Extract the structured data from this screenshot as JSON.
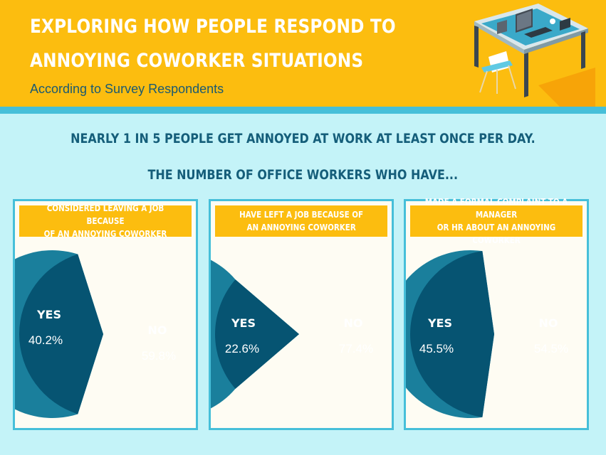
{
  "header": {
    "title_line1": "EXPLORING HOW PEOPLE RESPOND TO",
    "title_line2": "ANNOYING COWORKER SITUATIONS",
    "subtitle": "According to Survey Respondents"
  },
  "headline": "NEARLY 1 IN 5 PEOPLE GET ANNOYED AT WORK AT LEAST ONCE PER DAY.",
  "subheadline": "THE NUMBER OF OFFICE WORKERS WHO HAVE...",
  "colors": {
    "header_bg": "#fcbd0f",
    "background": "#c4f3f8",
    "yes_slice": "#065472",
    "no_slice": "#1a7f9c",
    "panel_border": "#46bfd9"
  },
  "chart_data": [
    {
      "type": "pie",
      "title": "CONSIDERED LEAVING A JOB BECAUSE\nOF AN ANNOYING COWORKER",
      "slices": [
        {
          "label": "YES",
          "value": 40.2,
          "display": "40.2%"
        },
        {
          "label": "NO",
          "value": 59.8,
          "display": "59.8%"
        }
      ]
    },
    {
      "type": "pie",
      "title": "HAVE LEFT A JOB BECAUSE OF\nAN ANNOYING COWORKER",
      "slices": [
        {
          "label": "YES",
          "value": 22.6,
          "display": "22.6%"
        },
        {
          "label": "NO",
          "value": 77.4,
          "display": "77.4%"
        }
      ]
    },
    {
      "type": "pie",
      "title": "MADE A FORMAL COMPLAINT TO A MANAGER\nOR HR ABOUT AN ANNOYING COWORKER",
      "slices": [
        {
          "label": "YES",
          "value": 45.5,
          "display": "45.5%"
        },
        {
          "label": "NO",
          "value": 54.5,
          "display": "54.5%"
        }
      ]
    }
  ]
}
